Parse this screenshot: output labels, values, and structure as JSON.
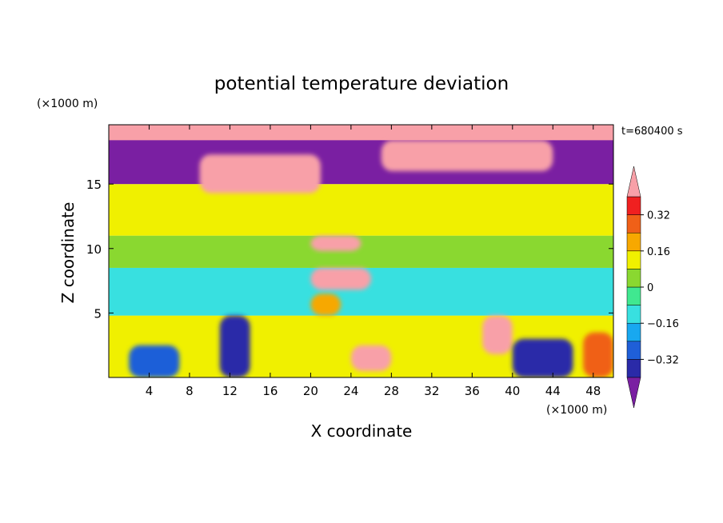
{
  "chart_data": {
    "type": "heatmap",
    "title": "potential temperature deviation",
    "xlabel": "X coordinate",
    "ylabel": "Z coordinate",
    "x_unit": "(×1000 m)",
    "y_unit": "(×1000 m)",
    "time_label": "t=680400 s",
    "xlim": [
      0,
      50
    ],
    "ylim": [
      0,
      19.6
    ],
    "x_ticks": [
      "4",
      "8",
      "12",
      "16",
      "20",
      "24",
      "28",
      "32",
      "36",
      "40",
      "44",
      "48"
    ],
    "y_ticks": [
      "5",
      "10",
      "15"
    ],
    "colorbar": {
      "levels": [
        -0.4,
        -0.32,
        -0.24,
        -0.16,
        -0.08,
        0,
        0.08,
        0.16,
        0.24,
        0.32,
        0.4
      ],
      "tick_labels": [
        "0.32",
        "0.16",
        "0",
        "−0.16",
        "−0.32"
      ],
      "colors": [
        "#7a1fa2",
        "#2a2aa8",
        "#1f5fd8",
        "#18a8f0",
        "#38e0e0",
        "#40e890",
        "#8ad830",
        "#f0f000",
        "#f7a800",
        "#f06018",
        "#f02020",
        "#f8a0a8"
      ],
      "extend": "both"
    },
    "regions": [
      {
        "x0": 0,
        "x1": 50,
        "z0": 0,
        "z1": 4.8,
        "value": 0.1
      },
      {
        "x0": 0,
        "x1": 50,
        "z0": 4.8,
        "z1": 8.5,
        "value": -0.1
      },
      {
        "x0": 0,
        "x1": 50,
        "z0": 8.5,
        "z1": 11,
        "value": 0.0
      },
      {
        "x0": 0,
        "x1": 50,
        "z0": 11,
        "z1": 15,
        "value": 0.08
      },
      {
        "x0": 0,
        "x1": 50,
        "z0": 15,
        "z1": 19.6,
        "value": -0.45
      },
      {
        "x0": 0,
        "x1": 50,
        "z0": 18.4,
        "z1": 19.6,
        "value": 0.45
      },
      {
        "x0": 9,
        "x1": 21,
        "z0": 14.3,
        "z1": 17.3,
        "value": 0.45
      },
      {
        "x0": 27,
        "x1": 44,
        "z0": 16.0,
        "z1": 18.4,
        "value": 0.45
      },
      {
        "x0": 2,
        "x1": 7,
        "z0": 0,
        "z1": 2.5,
        "value": -0.3
      },
      {
        "x0": 11,
        "x1": 14,
        "z0": 0,
        "z1": 4.8,
        "value": -0.35
      },
      {
        "x0": 24,
        "x1": 28,
        "z0": 0.5,
        "z1": 2.5,
        "value": 0.45
      },
      {
        "x0": 37,
        "x1": 40,
        "z0": 1.8,
        "z1": 4.8,
        "value": 0.45
      },
      {
        "x0": 40,
        "x1": 46,
        "z0": 0,
        "z1": 3.0,
        "value": -0.4
      },
      {
        "x0": 47,
        "x1": 50,
        "z0": 0,
        "z1": 3.5,
        "value": 0.25
      },
      {
        "x0": 20,
        "x1": 23,
        "z0": 4.8,
        "z1": 6.5,
        "value": 0.2
      },
      {
        "x0": 20,
        "x1": 25,
        "z0": 9.8,
        "z1": 11.0,
        "value": 0.45
      },
      {
        "x0": 20,
        "x1": 26,
        "z0": 6.8,
        "z1": 8.5,
        "value": 0.45
      }
    ]
  }
}
